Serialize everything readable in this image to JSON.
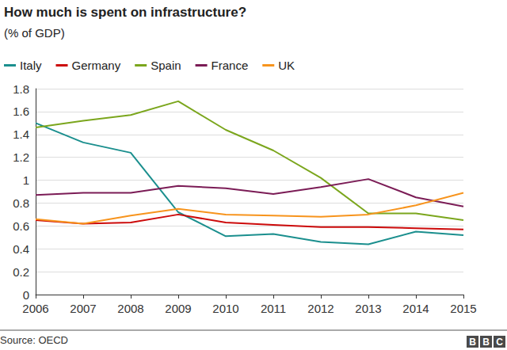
{
  "chart_data": {
    "type": "line",
    "title": "How much is spent on infrastructure?",
    "subtitle": "(% of GDP)",
    "annotations": [
      "Source: OECD",
      "BBC"
    ],
    "categories": [
      "2006",
      "2007",
      "2008",
      "2009",
      "2010",
      "2011",
      "2012",
      "2013",
      "2014",
      "2015"
    ],
    "series": [
      {
        "name": "Italy",
        "color": "#1b8f8e",
        "values": [
          1.5,
          1.33,
          1.24,
          0.72,
          0.51,
          0.53,
          0.46,
          0.44,
          0.55,
          0.52
        ]
      },
      {
        "name": "Germany",
        "color": "#cc0a0a",
        "values": [
          0.65,
          0.62,
          0.63,
          0.7,
          0.63,
          0.61,
          0.59,
          0.59,
          0.58,
          0.57
        ]
      },
      {
        "name": "Spain",
        "color": "#7ba61d",
        "values": [
          1.46,
          1.52,
          1.57,
          1.69,
          1.44,
          1.26,
          1.02,
          0.71,
          0.71,
          0.65
        ]
      },
      {
        "name": "France",
        "color": "#7b1c56",
        "values": [
          0.87,
          0.89,
          0.89,
          0.95,
          0.93,
          0.88,
          0.94,
          1.01,
          0.85,
          0.77
        ]
      },
      {
        "name": "UK",
        "color": "#f7941d",
        "values": [
          0.66,
          0.62,
          0.69,
          0.75,
          0.7,
          0.69,
          0.68,
          0.7,
          0.78,
          0.89
        ]
      }
    ],
    "ylim": [
      0,
      1.8
    ],
    "yticks": [
      0,
      0.2,
      0.4,
      0.6,
      0.8,
      1,
      1.2,
      1.4,
      1.6,
      1.8
    ],
    "grid": true,
    "legend": "top-left"
  }
}
